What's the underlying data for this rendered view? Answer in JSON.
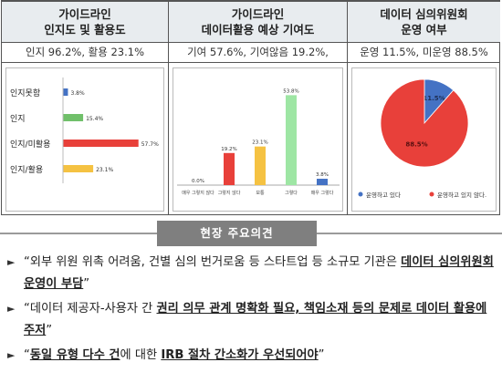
{
  "panels": [
    {
      "title_lines": [
        "가이드라인",
        "인지도 및 활용도"
      ],
      "summary": "인지 96.2%, 활용 23.1%"
    },
    {
      "title_lines": [
        "가이드라인",
        "데이터활용 예상 기여도"
      ],
      "summary": "기여 57.6%, 기여않음 19.2%,"
    },
    {
      "title_lines": [
        "데이터 심의위원회",
        "운영 여부"
      ],
      "summary": "운영 11.5%, 미운영 88.5%"
    }
  ],
  "chart_data": [
    {
      "type": "bar",
      "orientation": "horizontal",
      "categories": [
        "인지못함",
        "인지",
        "인지/미활용",
        "인지/활용"
      ],
      "values": [
        3.8,
        15.4,
        57.7,
        23.1
      ],
      "value_labels": [
        "3.8%",
        "15.4%",
        "57.7%",
        "23.1%"
      ],
      "colors": [
        "#4472c4",
        "#70c06a",
        "#e8403a",
        "#f5c242"
      ],
      "xlim": [
        0,
        60
      ]
    },
    {
      "type": "bar",
      "orientation": "vertical",
      "categories": [
        "매우 그렇지 않다",
        "그렇지 않다",
        "보통",
        "그렇다",
        "매우 그렇다"
      ],
      "values": [
        0.0,
        19.2,
        23.1,
        53.8,
        3.8
      ],
      "value_labels": [
        "0.0%",
        "19.2%",
        "23.1%",
        "53.8%",
        "3.8%"
      ],
      "colors": [
        "#4472c4",
        "#e8403a",
        "#f5c242",
        "#9ee6a4",
        "#4472c4"
      ],
      "ylim": [
        0,
        60
      ],
      "grid": false
    },
    {
      "type": "pie",
      "slices": [
        {
          "label": "운영하고 있다",
          "value": 11.5,
          "value_label": "11.5%",
          "color": "#4472c4"
        },
        {
          "label": "운영하고 있지 않다.",
          "value": 88.5,
          "value_label": "88.5%",
          "color": "#e8403a"
        }
      ],
      "legend": "bottom"
    }
  ],
  "section": {
    "title": "현장 주요의견"
  },
  "opinions": [
    {
      "bullet": "►",
      "parts": [
        {
          "text": "“외부 위원 위촉 어려움, 건별 심의 번거로움 등 스타트업 등 소규모 기관은 ",
          "em": false
        },
        {
          "text": "데이터 심의위원회 운영이 부담",
          "em": true
        },
        {
          "text": "”",
          "em": false
        }
      ]
    },
    {
      "bullet": "►",
      "parts": [
        {
          "text": "“데이터 제공자-사용자 간 ",
          "em": false
        },
        {
          "text": "권리 의무 관계 명확화 필요, 책임소재 등의 문제로 데이터 활용에 주저",
          "em": true
        },
        {
          "text": "”",
          "em": false
        }
      ]
    },
    {
      "bullet": "►",
      "parts": [
        {
          "text": "“",
          "em": false
        },
        {
          "text": "동일 유형 다수 건",
          "em": true
        },
        {
          "text": "에 대한 ",
          "em": false
        },
        {
          "text": "IRB 절차 간소화가 우선되어야",
          "em": true
        },
        {
          "text": "”",
          "em": false
        }
      ]
    }
  ]
}
